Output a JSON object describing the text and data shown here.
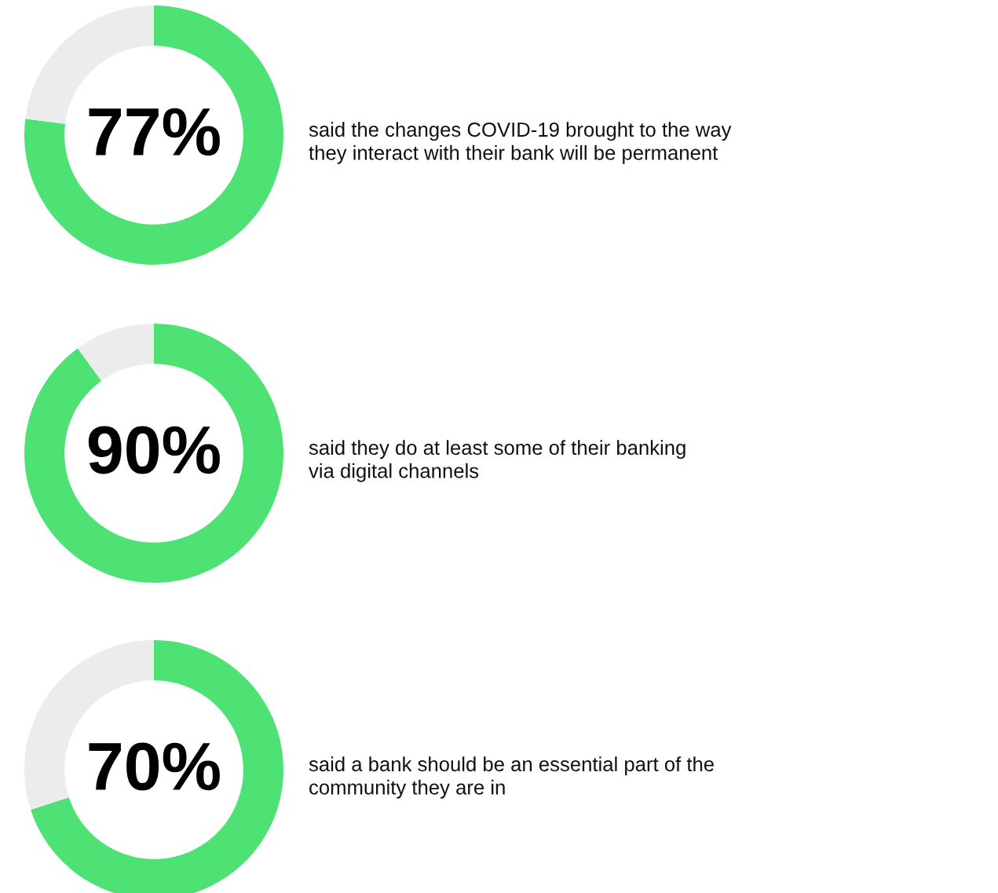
{
  "chart_data": [
    {
      "type": "donut",
      "categories": [
        null,
        null
      ],
      "values": [
        77,
        23
      ],
      "colors": [
        "#4ee275",
        "#ececec"
      ],
      "value_labels": [
        "77%",
        null
      ],
      "annotations": [
        "said the changes COVID-19 brought to the way\nthey interact with their bank will be permanent"
      ]
    },
    {
      "type": "donut",
      "categories": [
        null,
        null
      ],
      "values": [
        90,
        10
      ],
      "colors": [
        "#4ee275",
        "#ececec"
      ],
      "value_labels": [
        "90%",
        null
      ],
      "annotations": [
        "said they do at least some of their banking\nvia digital channels"
      ]
    },
    {
      "type": "donut",
      "categories": [
        null,
        null
      ],
      "values": [
        70,
        30
      ],
      "colors": [
        "#4ee275",
        "#ececec"
      ],
      "value_labels": [
        "70%",
        null
      ],
      "annotations": [
        "said a bank should be an essential part of the\ncommunity they are in"
      ]
    }
  ]
}
